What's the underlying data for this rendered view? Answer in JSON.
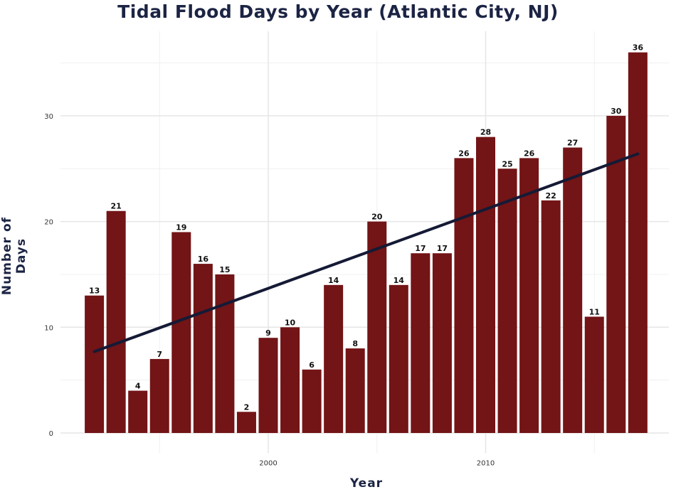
{
  "chart_data": {
    "type": "bar",
    "title": "Tidal Flood Days by Year (Atlantic City, NJ)",
    "xlabel": "Year",
    "ylabel": "Number of Days",
    "categories": [
      1992,
      1993,
      1994,
      1995,
      1996,
      1997,
      1998,
      1999,
      2000,
      2001,
      2002,
      2003,
      2004,
      2005,
      2006,
      2007,
      2008,
      2009,
      2010,
      2011,
      2012,
      2013,
      2014,
      2015,
      2016,
      2017
    ],
    "values": [
      13,
      21,
      4,
      7,
      19,
      16,
      15,
      2,
      9,
      10,
      6,
      14,
      8,
      20,
      14,
      17,
      17,
      26,
      28,
      25,
      26,
      22,
      27,
      11,
      30,
      36
    ],
    "data_labels": true,
    "trend_line": {
      "type": "linear",
      "start": {
        "x": 1992,
        "y": 7.7
      },
      "end": {
        "x": 2017,
        "y": 26.4
      }
    },
    "x_ticks": [
      "2000",
      "2010"
    ],
    "y_ticks": [
      "0",
      "10",
      "20",
      "30"
    ],
    "xlim": [
      1988.5,
      2018.5
    ],
    "ylim": [
      -1.9,
      38
    ],
    "grid": true,
    "colors": {
      "bar": "#731416",
      "trend": "#151a35",
      "title": "#1c2444",
      "grid": "#e6e6e6"
    }
  }
}
